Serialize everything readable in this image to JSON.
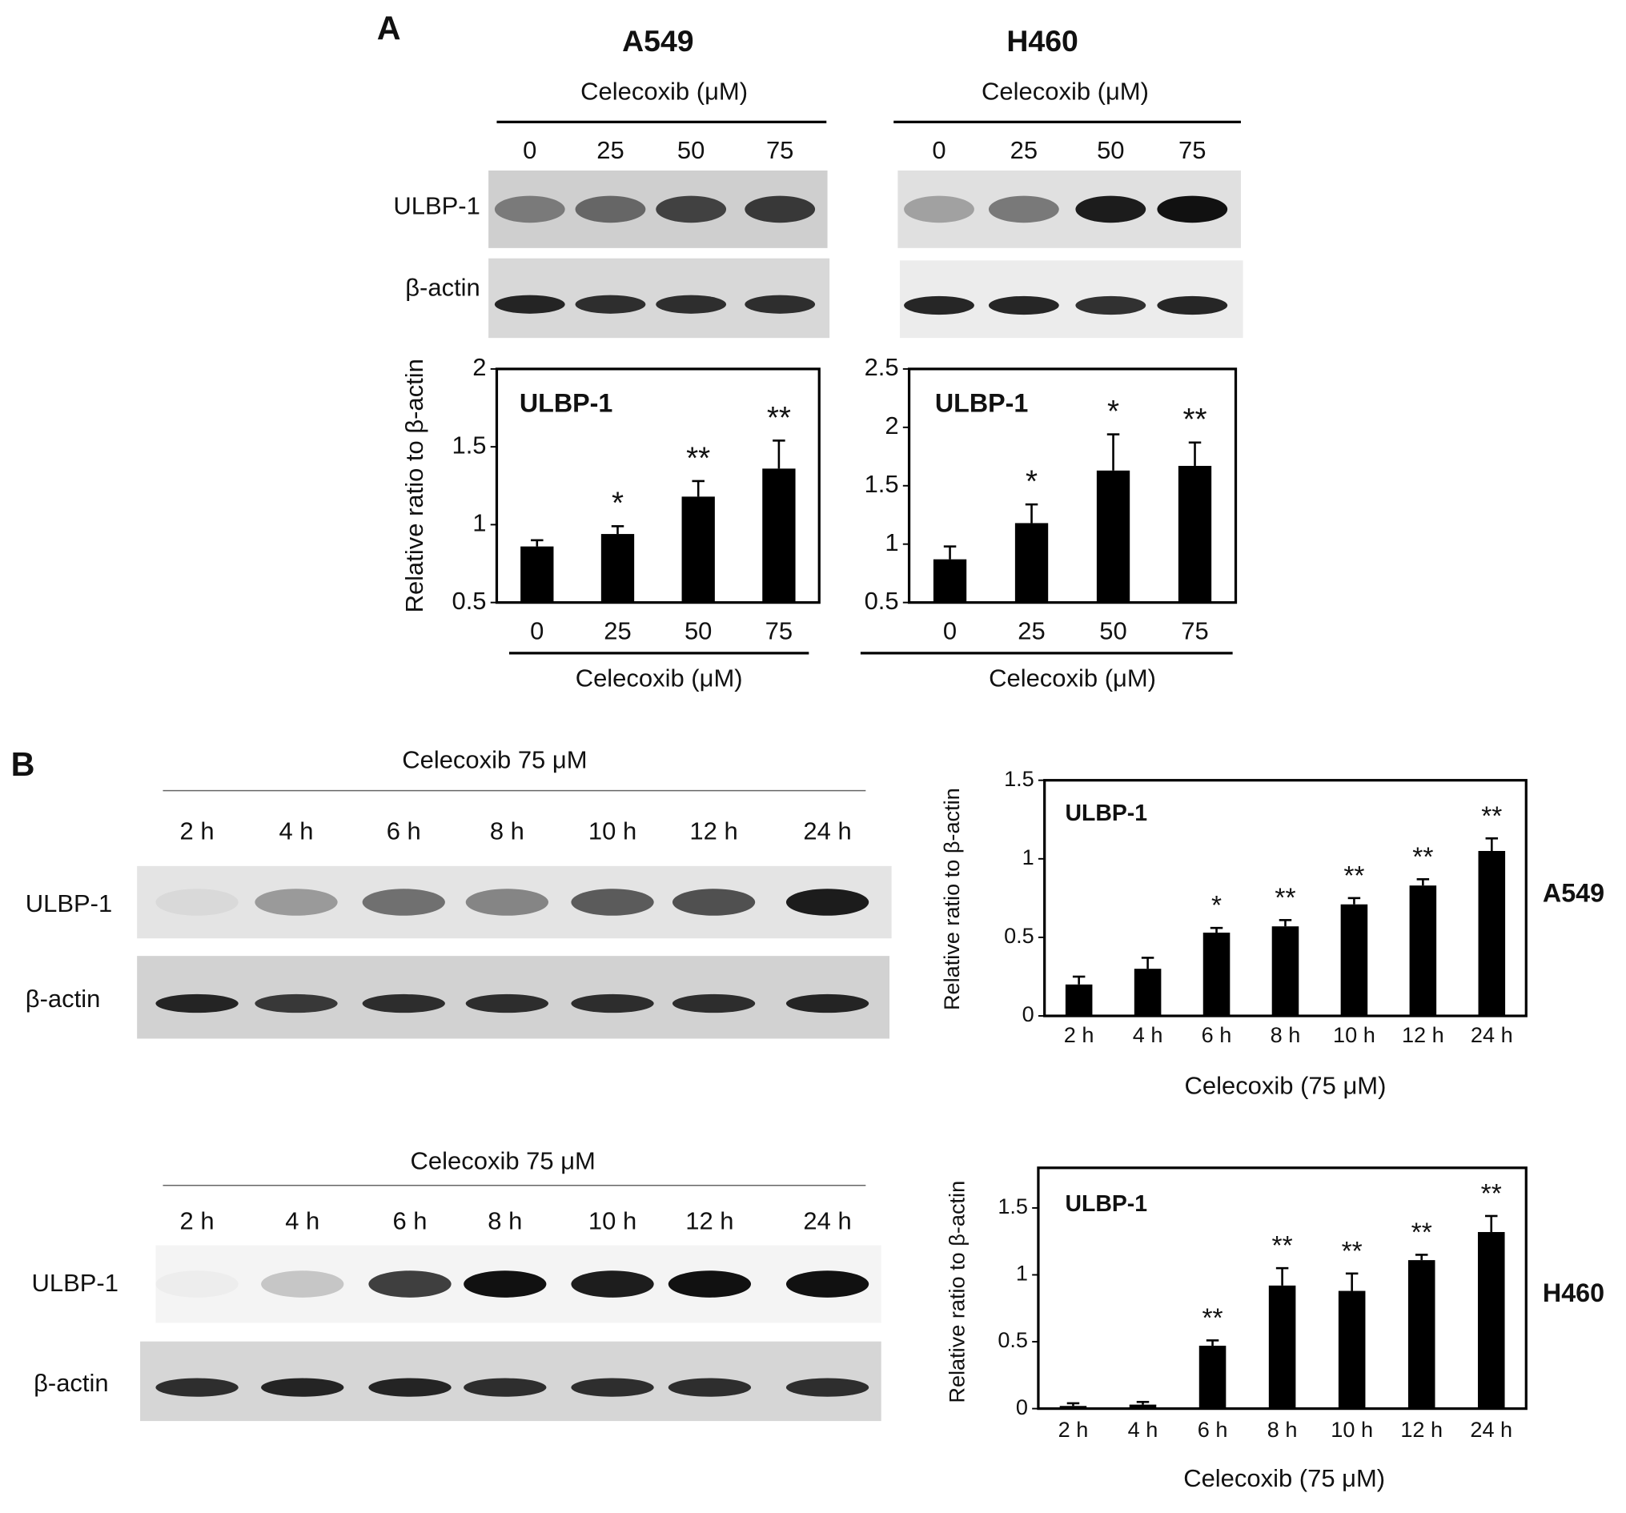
{
  "panel_labels": [
    "A",
    "B"
  ],
  "blots": [
    {
      "title": "A549",
      "treatment": "Celecoxib (μM)",
      "lanes": [
        "0",
        "25",
        "50",
        "75"
      ],
      "rows": [
        "ULBP-1",
        "β-actin"
      ]
    },
    {
      "title": "H460",
      "treatment": "Celecoxib (μM)",
      "lanes": [
        "0",
        "25",
        "50",
        "75"
      ],
      "rows": [
        "ULBP-1",
        "β-actin"
      ]
    },
    {
      "treatment": "Celecoxib 75 μM",
      "lanes": [
        "2 h",
        "4 h",
        "6 h",
        "8 h",
        "10 h",
        "12 h",
        "24 h"
      ],
      "rows": [
        "ULBP-1",
        "β-actin"
      ]
    },
    {
      "treatment": "Celecoxib 75 μM",
      "lanes": [
        "2 h",
        "4 h",
        "6 h",
        "8 h",
        "10 h",
        "12 h",
        "24 h"
      ],
      "rows": [
        "ULBP-1",
        "β-actin"
      ]
    }
  ],
  "chart_data": [
    {
      "type": "bar",
      "title": "ULBP-1",
      "y_label": "Relative ratio to β-actin",
      "x_label": "Celecoxib (μM)",
      "categories": [
        "0",
        "25",
        "50",
        "75"
      ],
      "values": [
        0.86,
        0.94,
        1.18,
        1.36
      ],
      "errors": [
        0.04,
        0.05,
        0.1,
        0.18
      ],
      "annotations": [
        null,
        "*",
        "**",
        "**"
      ],
      "color": "#000000",
      "ylim": [
        0.5,
        2
      ],
      "yticks": [
        0.5,
        1,
        1.5,
        2
      ]
    },
    {
      "type": "bar",
      "title": "ULBP-1",
      "y_label": "Relative ratio to β-actin",
      "x_label": "Celecoxib (μM)",
      "categories": [
        "0",
        "25",
        "50",
        "75"
      ],
      "values": [
        0.87,
        1.18,
        1.63,
        1.67
      ],
      "errors": [
        0.11,
        0.16,
        0.31,
        0.2
      ],
      "annotations": [
        null,
        "*",
        "*",
        "**"
      ],
      "color": "#000000",
      "ylim": [
        0.5,
        2.5
      ],
      "yticks": [
        0.5,
        1,
        1.5,
        2,
        2.5
      ]
    },
    {
      "type": "bar",
      "title": "ULBP-1",
      "label": "A549",
      "y_label": "Relative ratio to β-actin",
      "x_label": "Celecoxib (75 μM)",
      "categories": [
        "2 h",
        "4 h",
        "6 h",
        "8 h",
        "10 h",
        "12 h",
        "24 h"
      ],
      "values": [
        0.2,
        0.3,
        0.53,
        0.57,
        0.71,
        0.83,
        1.05
      ],
      "errors": [
        0.05,
        0.07,
        0.03,
        0.04,
        0.04,
        0.04,
        0.08
      ],
      "annotations": [
        null,
        null,
        "*",
        "**",
        "**",
        "**",
        "**"
      ],
      "color": "#000000",
      "ylim": [
        0,
        1.5
      ],
      "yticks": [
        0,
        0.5,
        1,
        1.5
      ]
    },
    {
      "type": "bar",
      "title": "ULBP-1",
      "label": "H460",
      "y_label": "Relative ratio to β-actin",
      "x_label": "Celecoxib (75 μM)",
      "categories": [
        "2 h",
        "4 h",
        "6 h",
        "8 h",
        "10 h",
        "12 h",
        "24 h"
      ],
      "values": [
        0.02,
        0.03,
        0.47,
        0.92,
        0.88,
        1.11,
        1.32
      ],
      "errors": [
        0.02,
        0.02,
        0.04,
        0.13,
        0.13,
        0.04,
        0.12
      ],
      "annotations": [
        null,
        null,
        "**",
        "**",
        "**",
        "**",
        "**"
      ],
      "color": "#000000",
      "ylim": [
        0,
        1.8
      ],
      "yticks": [
        0,
        0.5,
        1,
        1.5
      ]
    }
  ]
}
